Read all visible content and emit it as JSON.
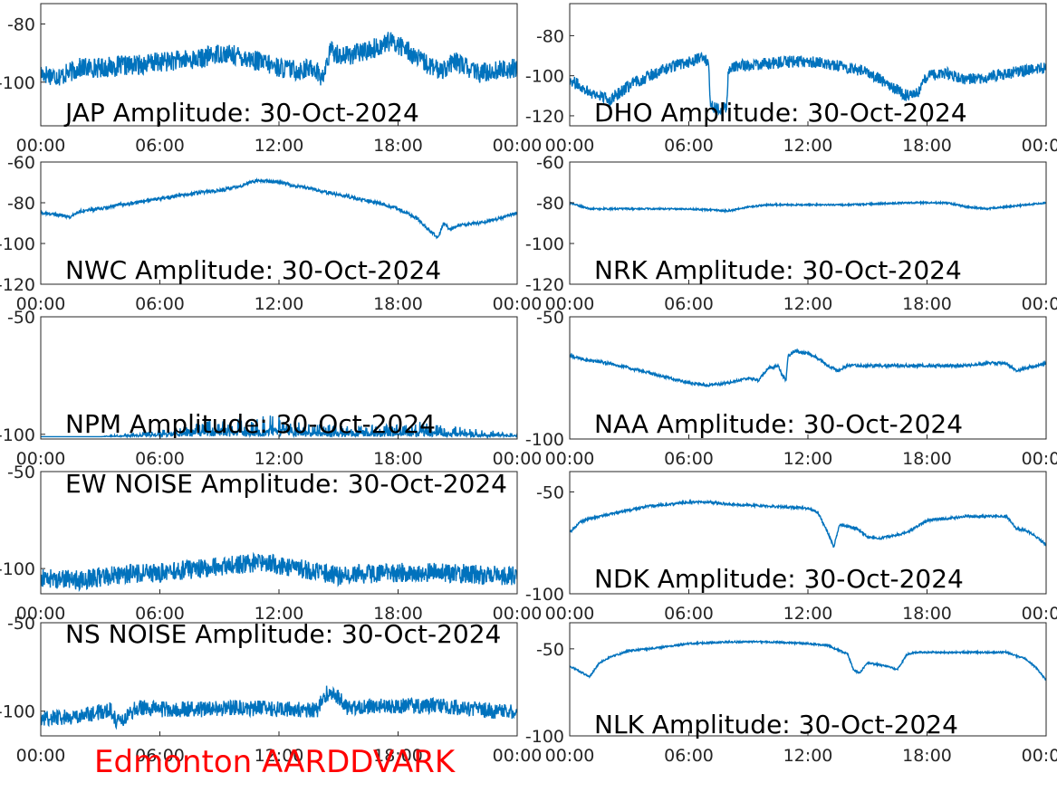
{
  "figure": {
    "footer": "Edmonton AARDDVARK",
    "footer_color": "#ff0000",
    "line_color": "#0072bd",
    "x_tick_labels": [
      "00:00",
      "06:00",
      "12:00",
      "18:00",
      "00:00"
    ]
  },
  "chart_data": [
    {
      "type": "line",
      "title": "JAP Amplitude: 30-Oct-2024",
      "ylim": [
        -115,
        -73
      ],
      "yticks": [
        -80,
        -100
      ],
      "xlim": [
        0,
        24
      ],
      "grid": false,
      "noise": 3.5,
      "series": [
        {
          "x": [
            0,
            1,
            2,
            3,
            5,
            6,
            8,
            9,
            10,
            11,
            12,
            13,
            13.8,
            14.2,
            14.6,
            15.2,
            16,
            17,
            17.5,
            18,
            18.5,
            19,
            20,
            21,
            22,
            23,
            24
          ],
          "y": [
            -97,
            -98,
            -95,
            -95,
            -94,
            -93,
            -92,
            -90,
            -91,
            -93,
            -95,
            -96,
            -95,
            -99,
            -89,
            -91,
            -90,
            -88,
            -86,
            -87,
            -89,
            -92,
            -96,
            -93,
            -97,
            -96,
            -95
          ]
        }
      ]
    },
    {
      "type": "line",
      "title": "DHO Amplitude: 30-Oct-2024",
      "ylim": [
        -125,
        -64
      ],
      "yticks": [
        -80,
        -100,
        -120
      ],
      "xlim": [
        0,
        24
      ],
      "grid": false,
      "noise": 3,
      "series": [
        {
          "x": [
            0,
            1,
            2,
            3,
            4,
            5,
            6,
            6.8,
            7,
            7.1,
            7.5,
            7.9,
            8,
            8.5,
            10,
            11,
            12,
            13,
            15,
            16,
            17,
            17.5,
            18,
            19,
            20,
            22,
            24
          ],
          "y": [
            -102,
            -108,
            -112,
            -105,
            -100,
            -96,
            -93,
            -91,
            -95,
            -115,
            -116,
            -116,
            -97,
            -95,
            -94,
            -93,
            -93,
            -94,
            -98,
            -104,
            -110,
            -109,
            -100,
            -99,
            -102,
            -99,
            -96
          ]
        }
      ]
    },
    {
      "type": "line",
      "title": "NWC Amplitude: 30-Oct-2024",
      "ylim": [
        -120,
        -60
      ],
      "yticks": [
        -60,
        -80,
        -100,
        -120
      ],
      "xlim": [
        0,
        24
      ],
      "grid": false,
      "noise": 0.8,
      "series": [
        {
          "x": [
            0,
            1,
            1.5,
            2,
            3,
            4,
            6,
            8,
            9,
            10,
            10.5,
            11,
            12,
            13,
            14,
            15,
            16,
            17,
            18,
            19,
            19.5,
            20,
            20.3,
            20.6,
            21,
            22,
            23,
            24
          ],
          "y": [
            -85,
            -86,
            -87,
            -84,
            -83,
            -81,
            -78,
            -75,
            -74,
            -72,
            -70,
            -69,
            -70,
            -72,
            -74,
            -76,
            -78,
            -80,
            -83,
            -88,
            -93,
            -97,
            -90,
            -93,
            -91,
            -90,
            -88,
            -85
          ]
        }
      ]
    },
    {
      "type": "line",
      "title": "NRK Amplitude: 30-Oct-2024",
      "ylim": [
        -120,
        -60
      ],
      "yticks": [
        -60,
        -80,
        -100,
        -120
      ],
      "xlim": [
        0,
        24
      ],
      "grid": false,
      "noise": 0.4,
      "series": [
        {
          "x": [
            0,
            0.3,
            1,
            3,
            6,
            8,
            9,
            10,
            12,
            14,
            17,
            18,
            19,
            20,
            21,
            22,
            23,
            24
          ],
          "y": [
            -80,
            -81,
            -83,
            -83,
            -83,
            -84,
            -82,
            -81,
            -81,
            -81,
            -80,
            -80,
            -80,
            -82,
            -83,
            -82,
            -81,
            -80
          ]
        }
      ]
    },
    {
      "type": "line",
      "title": "NPM Amplitude: 30-Oct-2024",
      "ylim": [
        -102,
        -50
      ],
      "yticks": [
        -50,
        -100
      ],
      "xlim": [
        0,
        24
      ],
      "grid": false,
      "noise": 3,
      "baseline": -101,
      "series": [
        {
          "x": [
            0,
            3,
            6,
            8,
            10,
            12,
            13,
            15,
            17,
            19,
            20.5,
            22,
            24
          ],
          "y": [
            -101,
            -101,
            -99,
            -97,
            -96,
            -95,
            -97,
            -98,
            -98,
            -97,
            -98,
            -99,
            -100
          ]
        }
      ]
    },
    {
      "type": "line",
      "title": "NAA Amplitude: 30-Oct-2024",
      "ylim": [
        -100,
        -50
      ],
      "yticks": [
        -50,
        -100
      ],
      "xlim": [
        0,
        24
      ],
      "grid": false,
      "noise": 0.6,
      "series": [
        {
          "x": [
            0,
            1,
            2,
            3,
            4,
            5,
            6,
            7,
            8,
            9,
            9.5,
            10,
            10.5,
            10.7,
            10.9,
            11,
            11.3,
            12,
            12.5,
            13,
            13.5,
            14,
            15,
            16,
            17,
            18,
            19,
            20,
            21,
            22,
            22.5,
            23,
            24
          ],
          "y": [
            -66,
            -68,
            -69,
            -71,
            -73,
            -75,
            -77,
            -78,
            -77,
            -75,
            -76,
            -71,
            -70,
            -74,
            -76,
            -66,
            -64,
            -65,
            -67,
            -70,
            -72,
            -70,
            -70,
            -70,
            -70,
            -70,
            -70,
            -70,
            -69,
            -69,
            -72,
            -71,
            -69
          ]
        }
      ]
    },
    {
      "type": "line",
      "title": "EW NOISE Amplitude: 30-Oct-2024",
      "ylim": [
        -113,
        -50
      ],
      "yticks": [
        -50,
        -100
      ],
      "xlim": [
        0,
        24
      ],
      "grid": false,
      "noise": 5,
      "series": [
        {
          "x": [
            0,
            2,
            4,
            6,
            8,
            10,
            11,
            12,
            13,
            14,
            15,
            16,
            18,
            20,
            22,
            24
          ],
          "y": [
            -105,
            -106,
            -103,
            -102,
            -100,
            -98,
            -97,
            -98,
            -100,
            -102,
            -104,
            -103,
            -102,
            -102,
            -103,
            -104
          ]
        }
      ]
    },
    {
      "type": "line",
      "title": "NDK Amplitude: 30-Oct-2024",
      "ylim": [
        -100,
        -40
      ],
      "yticks": [
        -50,
        -100
      ],
      "xlim": [
        0,
        24
      ],
      "grid": false,
      "noise": 0.6,
      "series": [
        {
          "x": [
            0,
            0.5,
            1,
            2,
            3,
            4,
            5,
            6,
            7,
            8,
            10,
            12,
            12.5,
            13,
            13.3,
            13.6,
            14,
            14.5,
            15,
            15.5,
            16,
            17,
            18,
            19,
            20,
            21,
            22,
            22.5,
            23,
            23.5,
            24
          ],
          "y": [
            -70,
            -65,
            -63,
            -61,
            -59,
            -57,
            -56,
            -55,
            -55,
            -56,
            -57,
            -58,
            -60,
            -70,
            -77,
            -66,
            -67,
            -68,
            -72,
            -73,
            -72,
            -70,
            -64,
            -63,
            -62,
            -62,
            -62,
            -68,
            -69,
            -72,
            -76
          ]
        }
      ]
    },
    {
      "type": "line",
      "title": "NS NOISE Amplitude: 30-Oct-2024",
      "ylim": [
        -114,
        -50
      ],
      "yticks": [
        -50,
        -100
      ],
      "xlim": [
        0,
        24
      ],
      "grid": false,
      "noise": 4.5,
      "series": [
        {
          "x": [
            0,
            2,
            3.5,
            3.8,
            4.1,
            4.8,
            6,
            8,
            10,
            12,
            14,
            14.2,
            14.4,
            14.6,
            15,
            15.4,
            16,
            18,
            20,
            22,
            24
          ],
          "y": [
            -104,
            -103,
            -99,
            -105,
            -105,
            -98,
            -99,
            -99,
            -98,
            -99,
            -99,
            -92,
            -90,
            -91,
            -92,
            -98,
            -98,
            -97,
            -97,
            -99,
            -101
          ]
        }
      ]
    },
    {
      "type": "line",
      "title": "NLK Amplitude: 30-Oct-2024",
      "ylim": [
        -100,
        -35
      ],
      "yticks": [
        -50,
        -100
      ],
      "xlim": [
        0,
        24
      ],
      "grid": false,
      "noise": 0.5,
      "series": [
        {
          "x": [
            0,
            0.5,
            1,
            1.5,
            2,
            3,
            4,
            6,
            8,
            10,
            12,
            13,
            14,
            14.3,
            14.6,
            15,
            15.5,
            16,
            16.5,
            17,
            17.5,
            19,
            21,
            22,
            23,
            23.5,
            24
          ],
          "y": [
            -60,
            -63,
            -66,
            -58,
            -55,
            -51,
            -50,
            -47,
            -46,
            -46,
            -47,
            -48,
            -53,
            -62,
            -64,
            -58,
            -59,
            -60,
            -62,
            -53,
            -52,
            -52,
            -52,
            -52,
            -56,
            -61,
            -68
          ]
        }
      ]
    }
  ]
}
